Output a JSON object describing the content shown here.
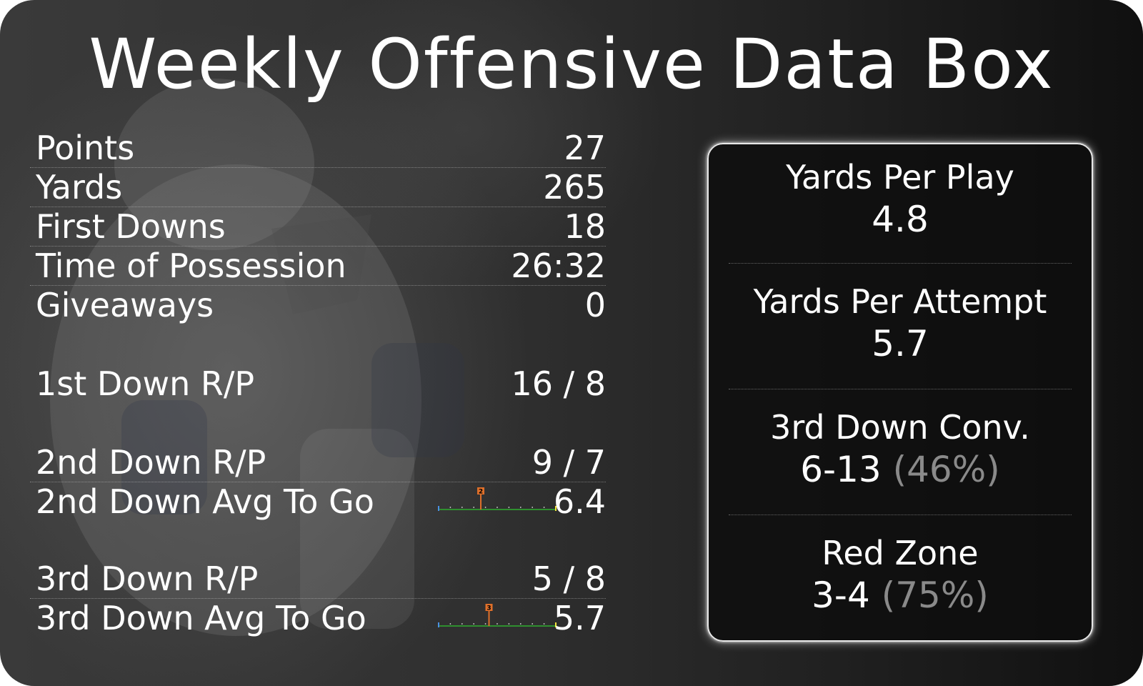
{
  "title": "Weekly Offensive Data Box",
  "stats": [
    {
      "label": "Points",
      "value": "27"
    },
    {
      "label": "Yards",
      "value": "265"
    },
    {
      "label": "First Downs",
      "value": "18"
    },
    {
      "label": "Time of Possession",
      "value": "26:32"
    },
    {
      "label": "Giveaways",
      "value": "0"
    }
  ],
  "downs": {
    "first_rp": {
      "label": "1st Down R/P",
      "value": "16 / 8"
    },
    "second_rp": {
      "label": "2nd Down R/P",
      "value": "9 / 7"
    },
    "second_avg": {
      "label": "2nd Down Avg To Go",
      "value": "6.4",
      "marker_label": "2",
      "marker_fraction": 0.36
    },
    "third_rp": {
      "label": "3rd Down R/P",
      "value": "5 / 8"
    },
    "third_avg": {
      "label": "3rd Down Avg To Go",
      "value": "5.7",
      "marker_label": "3",
      "marker_fraction": 0.43
    }
  },
  "panel": {
    "yards_per_play": {
      "label": "Yards Per Play",
      "value": "4.8"
    },
    "yards_per_attempt": {
      "label": "Yards Per Attempt",
      "value": "5.7"
    },
    "third_down_conv": {
      "label": "3rd Down Conv.",
      "value": "6-13",
      "pct": "(46%)"
    },
    "red_zone": {
      "label": "Red Zone",
      "value": "3-4",
      "pct": "(75%)"
    }
  },
  "colors": {
    "field_line": "#2f8f2f",
    "marker": "#e0702a",
    "start_tick": "#4a90e2",
    "end_tick": "#f2e33a",
    "pct_text": "#8a8a8a"
  }
}
